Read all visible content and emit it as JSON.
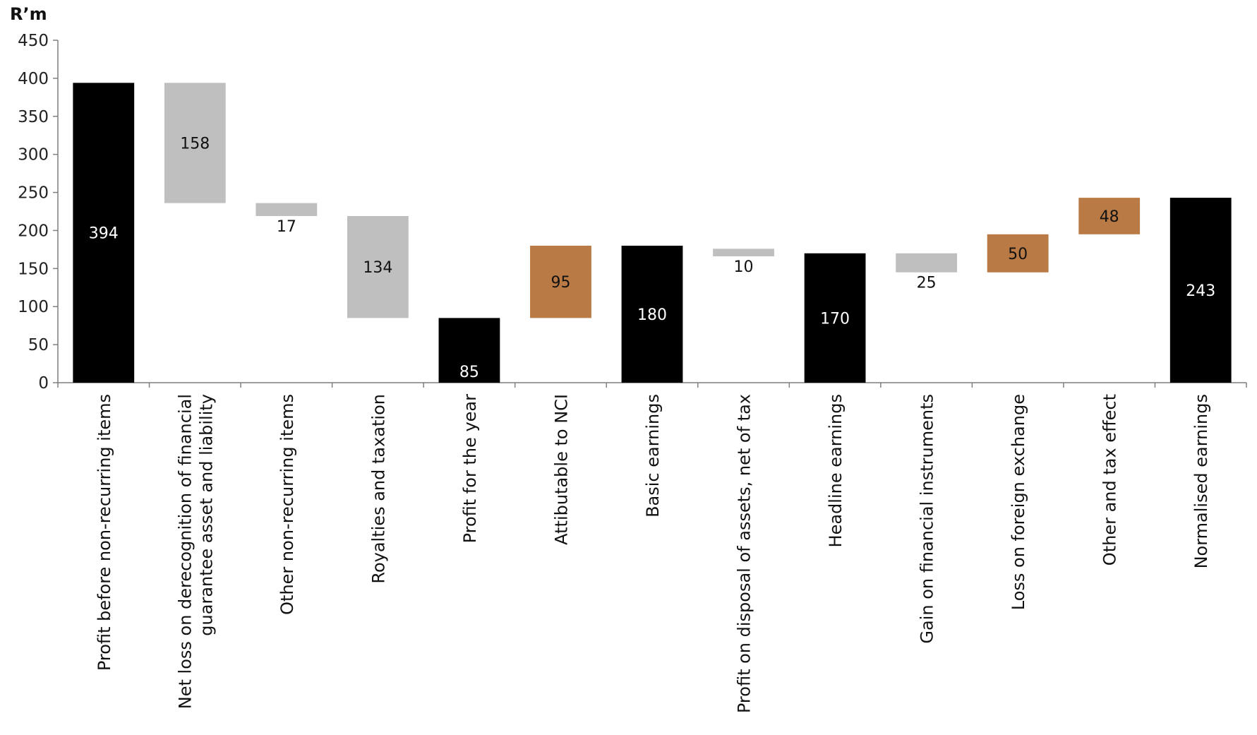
{
  "chart_data": {
    "type": "bar",
    "subtype": "waterfall",
    "title": "",
    "ylabel": "R’m",
    "xlabel": "",
    "ylim": [
      0,
      450
    ],
    "yticks": [
      0,
      50,
      100,
      150,
      200,
      250,
      300,
      350,
      400,
      450
    ],
    "grid": false,
    "legend": "none",
    "categories": [
      [
        "Profit before non-recurring items"
      ],
      [
        "Net loss on derecognition of financial",
        "guarantee asset and liability"
      ],
      [
        "Other non-recurring items"
      ],
      [
        "Royalties and taxation"
      ],
      [
        "Profit for the year"
      ],
      [
        "Attibutable to NCI"
      ],
      [
        "Basic earnings"
      ],
      [
        "Profit on disposal of assets, net of tax"
      ],
      [
        "Headline earnings"
      ],
      [
        "Gain on financial instruments"
      ],
      [
        "Loss on foreign exchange"
      ],
      [
        "Other and tax effect"
      ],
      [
        "Normalised earnings"
      ]
    ],
    "bars": [
      {
        "kind": "total",
        "base": 0,
        "value": 394,
        "label": "394"
      },
      {
        "kind": "decrease",
        "base": 236,
        "value": 158,
        "label": "158"
      },
      {
        "kind": "decrease",
        "base": 219,
        "value": 17,
        "label": "17"
      },
      {
        "kind": "decrease",
        "base": 85,
        "value": 134,
        "label": "134"
      },
      {
        "kind": "total",
        "base": 0,
        "value": 85,
        "label": "85"
      },
      {
        "kind": "increase",
        "base": 85,
        "value": 95,
        "label": "95"
      },
      {
        "kind": "total",
        "base": 0,
        "value": 180,
        "label": "180"
      },
      {
        "kind": "decrease",
        "base": 166,
        "value": 10,
        "label": "10"
      },
      {
        "kind": "total",
        "base": 0,
        "value": 170,
        "label": "170"
      },
      {
        "kind": "decrease",
        "base": 145,
        "value": 25,
        "label": "25"
      },
      {
        "kind": "increase",
        "base": 145,
        "value": 50,
        "label": "50"
      },
      {
        "kind": "increase",
        "base": 195,
        "value": 48,
        "label": "48"
      },
      {
        "kind": "total",
        "base": 0,
        "value": 243,
        "label": "243"
      }
    ],
    "colors": {
      "total": "#000000",
      "decrease": "#bfbfbf",
      "increase": "#b97a45",
      "axis": "#7f7f7f"
    }
  }
}
